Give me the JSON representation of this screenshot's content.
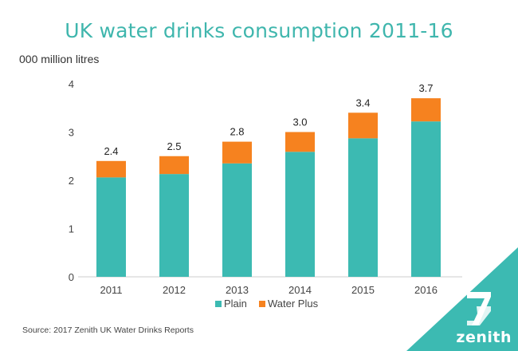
{
  "chart_data": {
    "type": "bar",
    "stacked": true,
    "title": "UK water drinks consumption 2011-16",
    "ylabel": "000 million litres",
    "xlabel": "",
    "categories": [
      "2011",
      "2012",
      "2013",
      "2014",
      "2015",
      "2016"
    ],
    "series": [
      {
        "name": "Plain",
        "color": "#3cbab2",
        "values": [
          2.06,
          2.13,
          2.35,
          2.59,
          2.87,
          3.22
        ]
      },
      {
        "name": "Water Plus",
        "color": "#f6821f",
        "values": [
          0.34,
          0.37,
          0.45,
          0.41,
          0.53,
          0.48
        ]
      }
    ],
    "totals_labels": [
      "2.4",
      "2.5",
      "2.8",
      "3.0",
      "3.4",
      "3.7"
    ],
    "totals": [
      2.4,
      2.5,
      2.8,
      3.0,
      3.4,
      3.7
    ],
    "ylim": [
      0,
      4
    ],
    "yticks": [
      "0",
      "1",
      "2",
      "3",
      "4"
    ],
    "grid": false,
    "legend_position": "bottom-center"
  },
  "source": "Source: 2017 Zenith UK Water Drinks Reports",
  "brand": {
    "name": "zenith",
    "color": "#3cbab2"
  }
}
